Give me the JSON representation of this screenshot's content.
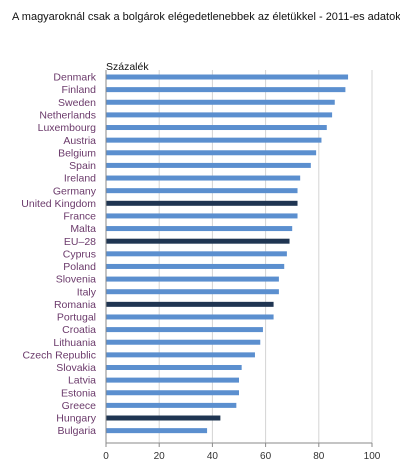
{
  "chart_data": {
    "type": "bar",
    "orientation": "horizontal",
    "title": "A magyaroknál csak a bolgárok elégedetlenebbek az életükkel - 2011-es adatok",
    "unit_label": "Százalék",
    "categories": [
      "Denmark",
      "Finland",
      "Sweden",
      "Netherlands",
      "Luxembourg",
      "Austria",
      "Belgium",
      "Spain",
      "Ireland",
      "Germany",
      "United Kingdom",
      "France",
      "Malta",
      "EU–28",
      "Cyprus",
      "Poland",
      "Slovenia",
      "Italy",
      "Romania",
      "Portugal",
      "Croatia",
      "Lithuania",
      "Czech Republic",
      "Slovakia",
      "Latvia",
      "Estonia",
      "Greece",
      "Hungary",
      "Bulgaria"
    ],
    "values": [
      91,
      90,
      86,
      85,
      83,
      81,
      79,
      77,
      73,
      72,
      72,
      72,
      70,
      69,
      68,
      67,
      65,
      65,
      63,
      63,
      59,
      58,
      56,
      51,
      50,
      50,
      49,
      43,
      38
    ],
    "highlighted": [
      "United Kingdom",
      "EU–28",
      "Romania",
      "Hungary"
    ],
    "xlim": [
      0,
      100
    ],
    "xticks": [
      0,
      20,
      40,
      60,
      80,
      100
    ],
    "grid": true,
    "colors": {
      "bar": "#5b8fcf",
      "bar_highlight": "#1f3552",
      "grid": "#d4d4d4",
      "axis": "#8a8a8a",
      "category_text": "#6b3a6b"
    }
  }
}
